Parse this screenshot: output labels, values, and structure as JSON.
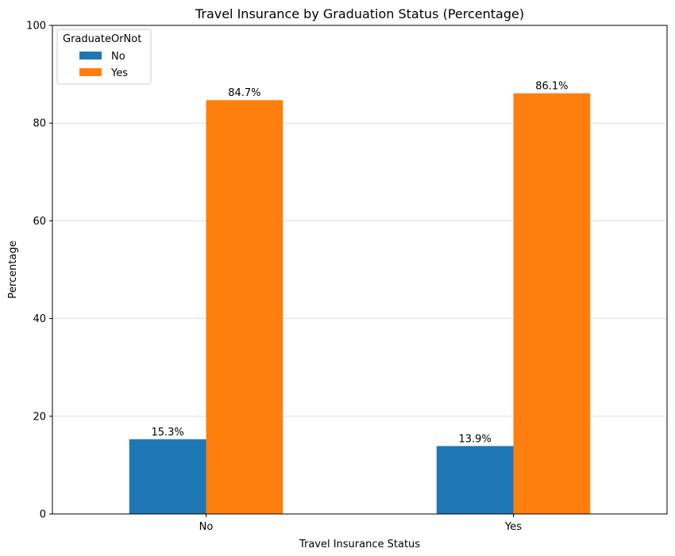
{
  "chart_data": {
    "type": "bar",
    "title": "Travel Insurance by Graduation Status (Percentage)",
    "xlabel": "Travel Insurance Status",
    "ylabel": "Percentage",
    "categories": [
      "No",
      "Yes"
    ],
    "series": [
      {
        "name": "No",
        "values": [
          15.3,
          13.9
        ],
        "color": "#1f77b4"
      },
      {
        "name": "Yes",
        "values": [
          84.7,
          86.1
        ],
        "color": "#ff7f0e"
      }
    ],
    "data_labels": [
      [
        "15.3%",
        "13.9%"
      ],
      [
        "84.7%",
        "86.1%"
      ]
    ],
    "ylim": [
      0,
      100
    ],
    "yticks": [
      0,
      20,
      40,
      60,
      80,
      100
    ],
    "grid": "horizontal",
    "legend": {
      "title": "GraduateOrNot",
      "position": "top-left"
    }
  }
}
